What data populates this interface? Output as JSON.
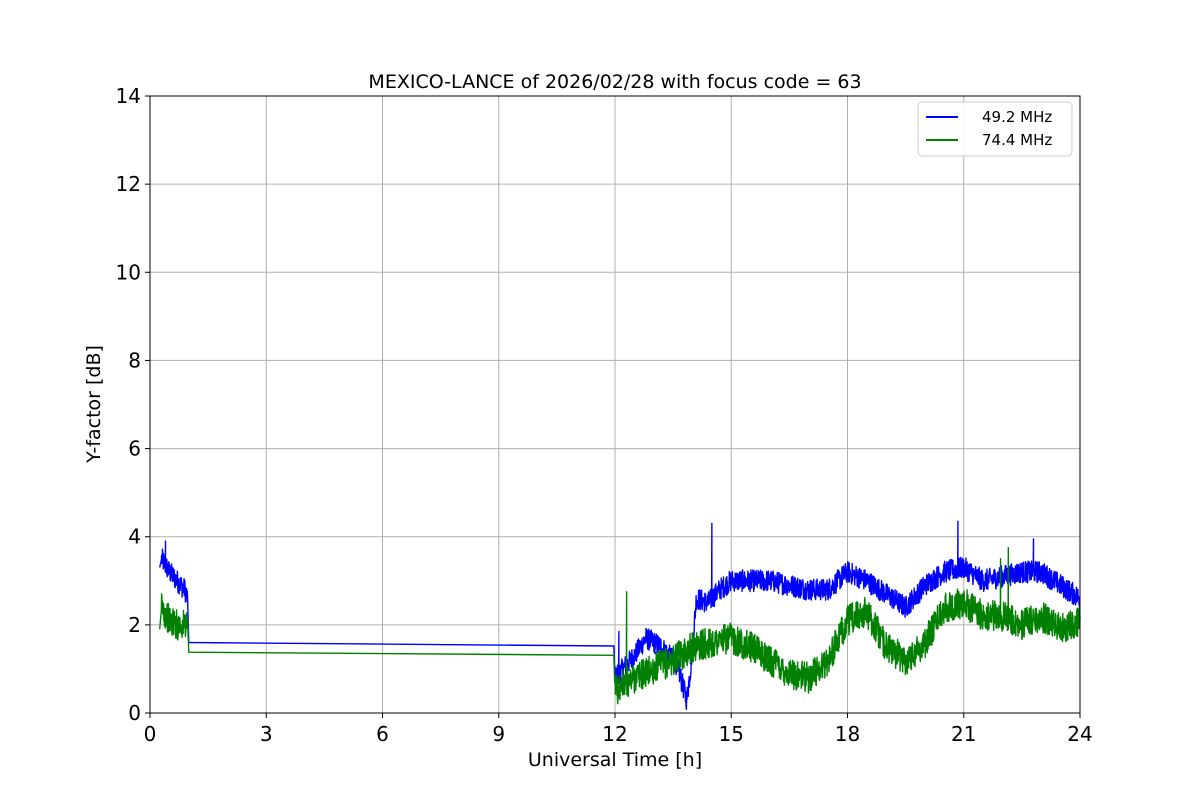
{
  "chart_data": {
    "type": "line",
    "title": "MEXICO-LANCE of 2026/02/28 with focus code = 63",
    "xlabel": "Universal Time [h]",
    "ylabel": "Y-factor [dB]",
    "xlim": [
      0,
      24
    ],
    "ylim": [
      0,
      14
    ],
    "xticks": [
      0,
      3,
      6,
      9,
      12,
      15,
      18,
      21,
      24
    ],
    "yticks": [
      0,
      2,
      4,
      6,
      8,
      10,
      12,
      14
    ],
    "grid": true,
    "legend_position": "top-right",
    "series": [
      {
        "name": "49.2 MHz",
        "color": "#0000ff",
        "noise_amplitude": 0.25,
        "spikes": [
          [
            0.4,
            3.9
          ],
          [
            14.5,
            4.3
          ],
          [
            20.85,
            4.35
          ],
          [
            22.8,
            3.95
          ],
          [
            12.1,
            1.85
          ]
        ],
        "x": [
          0.25,
          0.3,
          0.5,
          0.7,
          0.9,
          0.97,
          1.0,
          11.97,
          12.0,
          12.2,
          12.5,
          12.8,
          13.2,
          13.6,
          13.85,
          13.95,
          14.1,
          14.4,
          14.7,
          15.0,
          15.5,
          16.0,
          16.5,
          17.0,
          17.5,
          18.0,
          18.5,
          19.0,
          19.5,
          20.0,
          20.5,
          21.0,
          21.5,
          22.0,
          22.5,
          23.0,
          23.5,
          24.0
        ],
        "y": [
          3.3,
          3.5,
          3.2,
          3.0,
          2.8,
          2.6,
          1.6,
          1.52,
          0.8,
          1.0,
          1.3,
          1.7,
          1.5,
          1.1,
          0.3,
          1.0,
          2.6,
          2.5,
          2.8,
          3.0,
          3.0,
          3.0,
          2.9,
          2.8,
          2.8,
          3.2,
          3.0,
          2.7,
          2.4,
          2.9,
          3.2,
          3.3,
          3.0,
          3.1,
          3.2,
          3.2,
          2.9,
          2.6
        ]
      },
      {
        "name": "74.4 MHz",
        "color": "#008000",
        "noise_amplitude": 0.35,
        "spikes": [
          [
            12.3,
            2.75
          ],
          [
            22.15,
            3.75
          ],
          [
            21.95,
            3.5
          ]
        ],
        "x": [
          0.25,
          0.3,
          0.5,
          0.7,
          0.9,
          0.97,
          1.0,
          11.97,
          12.0,
          12.5,
          13.0,
          13.5,
          14.0,
          14.5,
          15.0,
          15.5,
          16.0,
          16.5,
          17.0,
          17.5,
          18.0,
          18.5,
          19.0,
          19.5,
          20.0,
          20.5,
          21.0,
          21.5,
          22.0,
          22.5,
          23.0,
          23.5,
          24.0
        ],
        "y": [
          1.9,
          2.4,
          2.1,
          2.0,
          2.0,
          2.1,
          1.38,
          1.31,
          0.5,
          0.8,
          1.0,
          1.2,
          1.5,
          1.6,
          1.7,
          1.5,
          1.2,
          0.9,
          0.8,
          1.2,
          2.1,
          2.3,
          1.5,
          1.2,
          1.6,
          2.4,
          2.5,
          2.2,
          2.2,
          2.0,
          2.2,
          1.9,
          2.1
        ]
      }
    ]
  }
}
